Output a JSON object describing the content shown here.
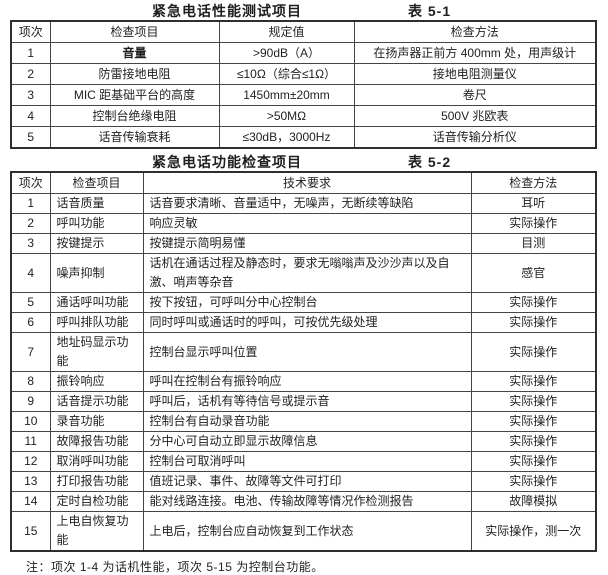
{
  "page": {
    "note": "注：项次 1-4 为话机性能，项次 5-15 为控制台功能。"
  },
  "table1": {
    "title": "紧急电话性能测试项目",
    "table_no": "表 5-1",
    "headers": [
      "项次",
      "检查项目",
      "规定值",
      "检查方法"
    ],
    "rows": [
      [
        "1",
        "音量",
        ">90dB（A）",
        "在扬声器正前方 400mm 处，用声级计"
      ],
      [
        "2",
        "防雷接地电阻",
        "≤10Ω（综合≤1Ω）",
        "接地电阻测量仪"
      ],
      [
        "3",
        "MIC 距基础平台的高度",
        "1450mm±20mm",
        "卷尺"
      ],
      [
        "4",
        "控制台绝缘电阻",
        ">50MΩ",
        "500V 兆欧表"
      ],
      [
        "5",
        "话音传输衰耗",
        "≤30dB，3000Hz",
        "话音传输分析仪"
      ]
    ]
  },
  "table2": {
    "title": "紧急电话功能检查项目",
    "table_no": "表 5-2",
    "headers": [
      "项次",
      "检查项目",
      "技术要求",
      "检查方法"
    ],
    "rows": [
      [
        "1",
        "话音质量",
        "话音要求清晰、音量适中，无噪声，无断续等缺陷",
        "耳听"
      ],
      [
        "2",
        "呼叫功能",
        "响应灵敏",
        "实际操作"
      ],
      [
        "3",
        "按键提示",
        "按键提示简明易懂",
        "目测"
      ],
      [
        "4",
        "噪声抑制",
        "话机在通话过程及静态时，要求无嗡嗡声及沙沙声以及自激、哨声等杂音",
        "感官"
      ],
      [
        "5",
        "通话呼叫功能",
        "按下按钮，可呼叫分中心控制台",
        "实际操作"
      ],
      [
        "6",
        "呼叫排队功能",
        "同时呼叫或通话时的呼叫，可按优先级处理",
        "实际操作"
      ],
      [
        "7",
        "地址码显示功能",
        "控制台显示呼叫位置",
        "实际操作"
      ],
      [
        "8",
        "振铃响应",
        "呼叫在控制台有振铃响应",
        "实际操作"
      ],
      [
        "9",
        "话音提示功能",
        "呼叫后，话机有等待信号或提示音",
        "实际操作"
      ],
      [
        "10",
        "录音功能",
        "控制台有自动录音功能",
        "实际操作"
      ],
      [
        "11",
        "故障报告功能",
        "分中心可自动立即显示故障信息",
        "实际操作"
      ],
      [
        "12",
        "取消呼叫功能",
        "控制台可取消呼叫",
        "实际操作"
      ],
      [
        "13",
        "打印报告功能",
        "值班记录、事件、故障等文件可打印",
        "实际操作"
      ],
      [
        "14",
        "定时自检功能",
        "能对线路连接。电池、传输故障等情况作检测报告",
        "故障模拟"
      ],
      [
        "15",
        "上电自恢复功能",
        "上电后，控制台应自动恢复到工作状态",
        "实际操作，测一次"
      ]
    ]
  }
}
